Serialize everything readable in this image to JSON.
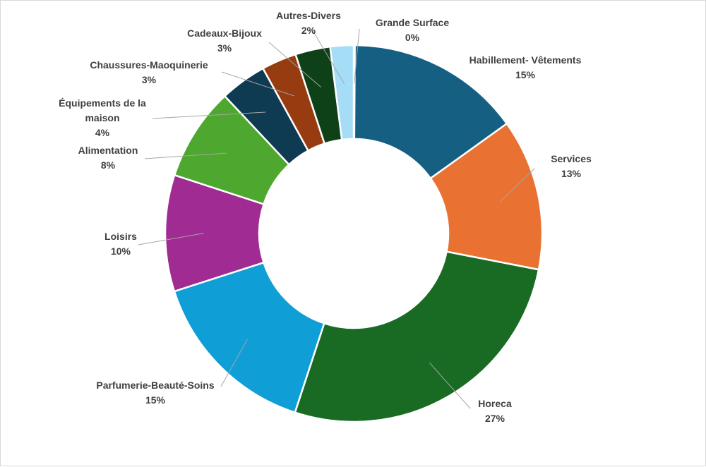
{
  "chart_data": {
    "type": "pie",
    "style": "doughnut",
    "legend": "none",
    "slices": [
      {
        "name": "Grande Surface",
        "value": 0.1,
        "label": "0%",
        "color": "#A5DDF6"
      },
      {
        "name": "Habillement- Vêtements",
        "value": 15,
        "label": "15%",
        "color": "#156082"
      },
      {
        "name": "Services",
        "value": 13,
        "label": "13%",
        "color": "#E97132"
      },
      {
        "name": "Horeca",
        "value": 27,
        "label": "27%",
        "color": "#196B24"
      },
      {
        "name": "Parfumerie-Beauté-Soins",
        "value": 15,
        "label": "15%",
        "color": "#0F9ED5"
      },
      {
        "name": "Loisirs",
        "value": 10,
        "label": "10%",
        "color": "#A02B93"
      },
      {
        "name": "Alimentation",
        "value": 8,
        "label": "8%",
        "color": "#4EA72E"
      },
      {
        "name": "Équipements de la maison",
        "value": 4,
        "label": "4%",
        "color": "#0E3A52"
      },
      {
        "name": "Chaussures-Maoquinerie",
        "value": 3,
        "label": "3%",
        "color": "#963C10"
      },
      {
        "name": "Cadeaux-Bijoux",
        "value": 3,
        "label": "3%",
        "color": "#0E4117"
      },
      {
        "name": "Autres-Divers",
        "value": 2,
        "label": "2%",
        "color": "#A5DDF6"
      }
    ]
  }
}
